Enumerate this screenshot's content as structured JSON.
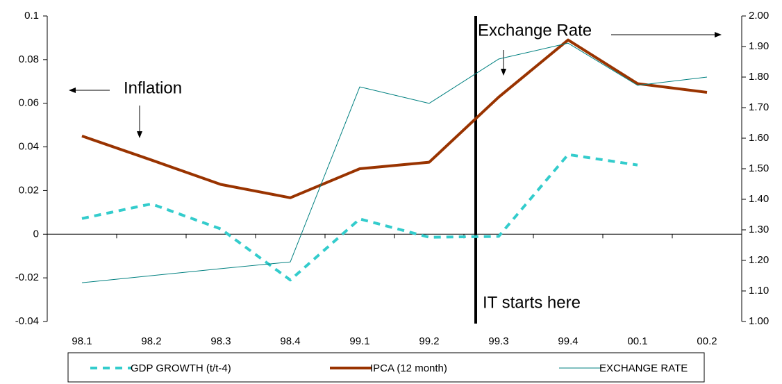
{
  "chart_data": {
    "type": "line",
    "categories": [
      "98.1",
      "98.2",
      "98.3",
      "98.4",
      "99.1",
      "99.2",
      "99.3",
      "99.4",
      "00.1",
      "00.2"
    ],
    "series": [
      {
        "name": "GDP GROWTH (t/t-4)",
        "color": "#33cccc",
        "style": "dashed",
        "values": [
          0.0072,
          0.0139,
          0.0024,
          -0.021,
          0.007,
          -0.0014,
          -0.001,
          0.0365,
          0.0317,
          null
        ]
      },
      {
        "name": "IPCA (12 month)",
        "color": "#993300",
        "style": "thick",
        "values": [
          0.045,
          0.034,
          0.0228,
          0.0167,
          0.03,
          0.033,
          0.0628,
          0.089,
          0.069,
          0.065
        ]
      },
      {
        "name": "EXCHANGE RATE",
        "color": "#008080",
        "style": "thin",
        "axis": "y2",
        "values": [
          1.127,
          1.15,
          1.173,
          1.195,
          1.768,
          1.714,
          1.859,
          1.911,
          1.773,
          1.8
        ]
      }
    ],
    "ylim": [
      -0.04,
      0.1
    ],
    "yticks": [
      -0.04,
      -0.02,
      0,
      0.02,
      0.04,
      0.06,
      0.08,
      0.1
    ],
    "y2lim": [
      1.0,
      2.0
    ],
    "y2ticks": [
      {
        "value": 1.0,
        "label": "1.00"
      },
      {
        "value": 1.1,
        "label": "1.10"
      },
      {
        "value": 1.2,
        "label": "1.20"
      },
      {
        "value": 1.3,
        "label": "1.30"
      },
      {
        "value": 1.4,
        "label": "1.40"
      },
      {
        "value": 1.5,
        "label": "1.50"
      },
      {
        "value": 1.6,
        "label": "1.60"
      },
      {
        "value": 1.7,
        "label": "1.70"
      },
      {
        "value": 1.8,
        "label": "1.80"
      },
      {
        "value": 1.9,
        "label": "1.90"
      },
      {
        "value": 2.0,
        "label": "2.00"
      }
    ],
    "annotations": [
      "Inflation",
      "Exchange Rate",
      "IT starts here"
    ],
    "legend": "bottom"
  }
}
